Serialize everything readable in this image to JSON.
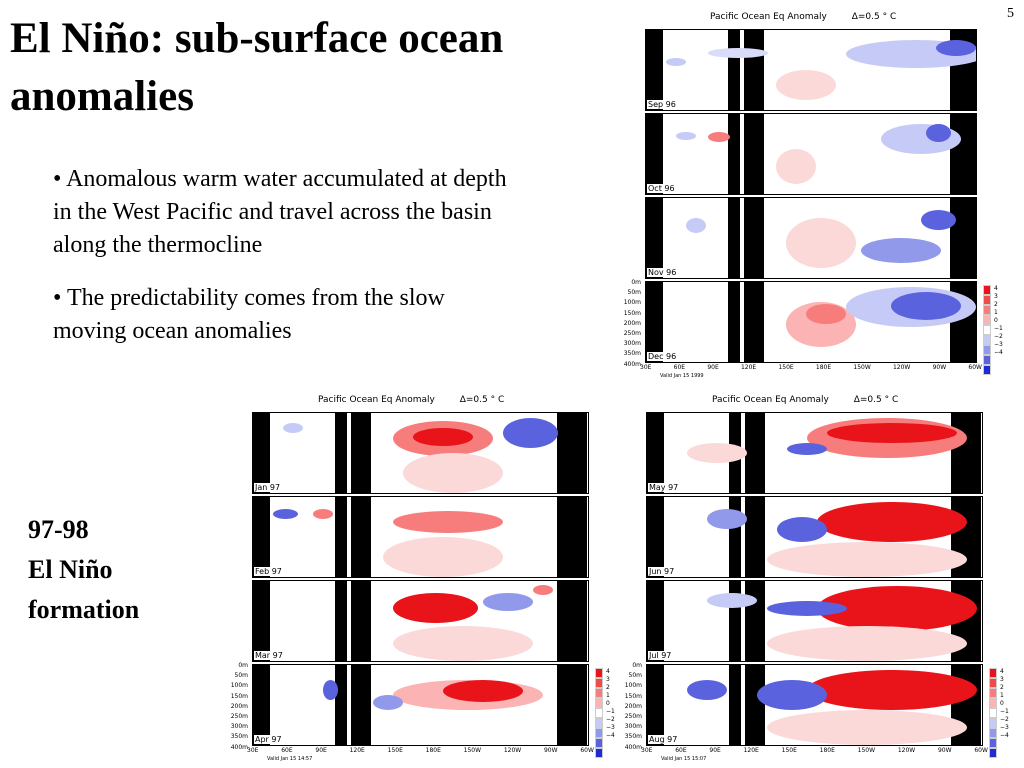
{
  "slide": {
    "title": "El Niño: sub-surface ocean anomalies",
    "number": "5",
    "bullets": [
      "• Anomalous warm water accumulated at depth in the West Pacific and travel across the basin along the thermocline",
      "• The predictability comes from the slow moving ocean anomalies"
    ],
    "side_label_lines": [
      "97-98",
      "El Niño",
      "formation"
    ]
  },
  "figures": {
    "title": "Pacific Ocean Eq Anomaly",
    "contour_interval": "Δ=0.5 ° C",
    "depth_ticks": [
      "0m",
      "50m",
      "100m",
      "150m",
      "200m",
      "250m",
      "300m",
      "350m",
      "400m"
    ],
    "lon_ticks": [
      "30E",
      "60E",
      "90E",
      "120E",
      "150E",
      "180E",
      "150W",
      "120W",
      "90W",
      "60W"
    ],
    "colorbar_ticks": [
      "4",
      "3",
      "2",
      "1",
      "0",
      "−1",
      "−2",
      "−3",
      "−4"
    ],
    "colorbar_colors": [
      "#e8141a",
      "#f04a4a",
      "#f77d7d",
      "#fbb3b3",
      "#ffffff",
      "#c5cbf6",
      "#9199ea",
      "#5a63dd",
      "#1f2bd0"
    ],
    "fig1": {
      "panels": [
        "Sep 96",
        "Oct 96",
        "Nov 96",
        "Dec 96"
      ],
      "valid": "Valid Jan 15 1999"
    },
    "fig2": {
      "panels": [
        "Jan 97",
        "Feb 97",
        "Mar 97",
        "Apr 97"
      ],
      "valid": "Valid Jan 15 14:57"
    },
    "fig3": {
      "panels": [
        "May 97",
        "Jun 97",
        "Jul 97",
        "Aug 97"
      ],
      "valid": "Valid Jan 15 15:07"
    }
  }
}
